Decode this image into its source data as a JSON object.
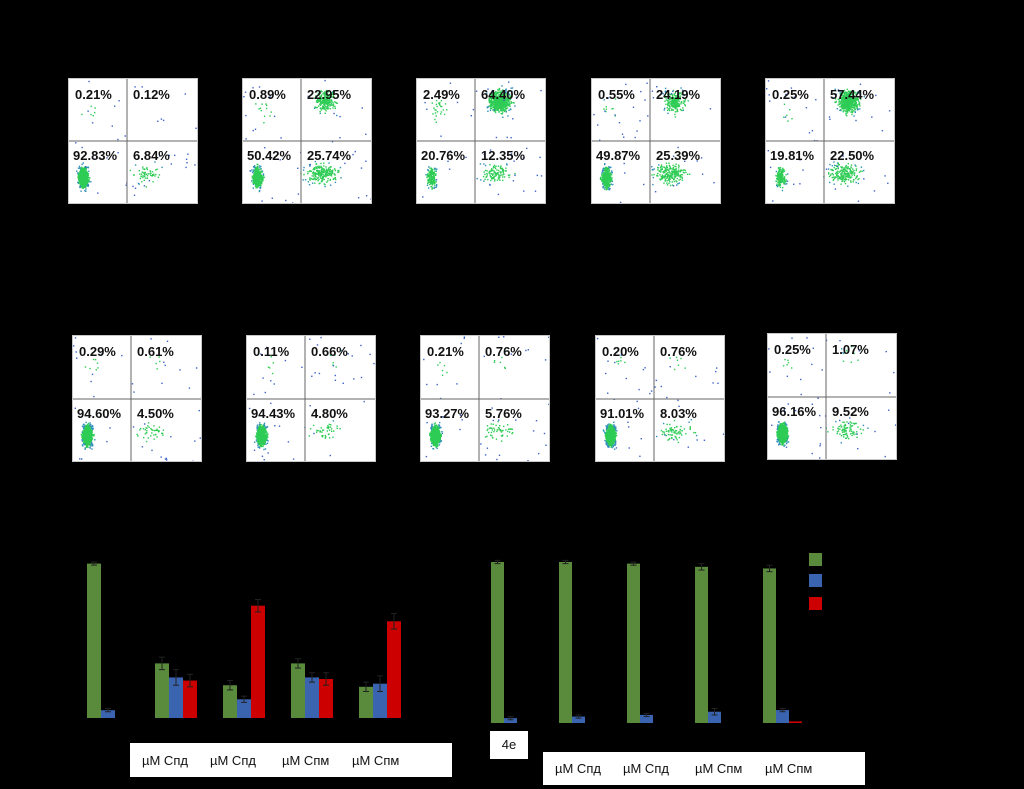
{
  "flow_panels": {
    "row1": [
      {
        "ul": "0.21%",
        "ur": "0.12%",
        "ll": "92.83%",
        "lr": "6.84%"
      },
      {
        "ul": "0.89%",
        "ur": "22.95%",
        "ll": "50.42%",
        "lr": "25.74%"
      },
      {
        "ul": "2.49%",
        "ur": "64.40%",
        "ll": "20.76%",
        "lr": "12.35%"
      },
      {
        "ul": "0.55%",
        "ur": "24.19%",
        "ll": "49.87%",
        "lr": "25.39%"
      },
      {
        "ul": "0.25%",
        "ur": "57.44%",
        "ll": "19.81%",
        "lr": "22.50%"
      }
    ],
    "row2": [
      {
        "ul": "0.29%",
        "ur": "0.61%",
        "ll": "94.60%",
        "lr": "4.50%"
      },
      {
        "ul": "0.11%",
        "ur": "0.66%",
        "ll": "94.43%",
        "lr": "4.80%"
      },
      {
        "ul": "0.21%",
        "ur": "0.76%",
        "ll": "93.27%",
        "lr": "5.76%"
      },
      {
        "ul": "0.20%",
        "ur": "0.76%",
        "ll": "91.01%",
        "lr": "8.03%"
      },
      {
        "ul": "0.25%",
        "ur": "1.07%",
        "ll": "96.16%",
        "lr": "9.52%"
      }
    ]
  },
  "chart_data": [
    {
      "type": "bar",
      "categories": [
        "",
        "µM Спд",
        "µM Спд",
        "µM Спм",
        "µM Спм"
      ],
      "ylim": [
        0,
        100
      ],
      "colors": [
        "#5a8a3c",
        "#3a64b0",
        "#cc0000"
      ],
      "series": [
        {
          "name": "green",
          "values": [
            99,
            35,
            21,
            35,
            20
          ]
        },
        {
          "name": "blue",
          "values": [
            5,
            26,
            12,
            26,
            22
          ]
        },
        {
          "name": "red",
          "values": [
            0,
            24,
            72,
            25,
            62
          ]
        }
      ],
      "errors": [
        [
          1,
          4,
          3,
          3,
          3
        ],
        [
          1,
          5,
          2,
          3,
          5
        ],
        [
          0,
          4,
          4,
          4,
          5
        ]
      ]
    },
    {
      "type": "bar",
      "categories": [
        "4e",
        "µM Спд",
        "µM Спд",
        "µM Спм",
        "µM Спм"
      ],
      "ylim": [
        0,
        100
      ],
      "colors": [
        "#5a8a3c",
        "#3a64b0",
        "#cc0000"
      ],
      "series": [
        {
          "name": "green",
          "values": [
            100,
            100,
            99,
            97,
            96
          ]
        },
        {
          "name": "blue",
          "values": [
            3,
            4,
            5,
            7,
            8
          ]
        },
        {
          "name": "red",
          "values": [
            0,
            0,
            0,
            0,
            1
          ]
        }
      ],
      "errors": [
        [
          1,
          1,
          1,
          2,
          2
        ],
        [
          1,
          1,
          1,
          2,
          1
        ],
        [
          0,
          0,
          0,
          0,
          0
        ]
      ]
    }
  ]
}
